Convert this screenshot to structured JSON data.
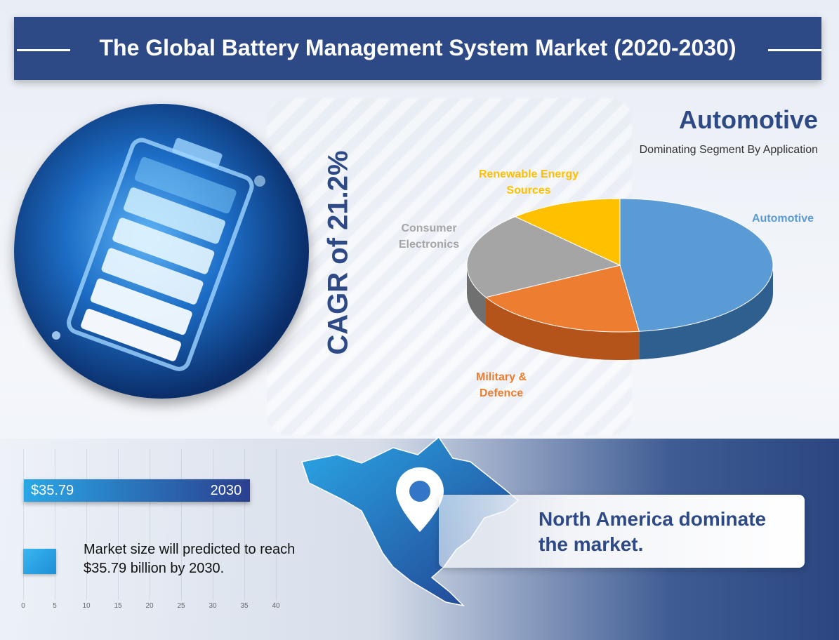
{
  "header": {
    "title": "The Global Battery Management System Market (2020-2030)"
  },
  "cagr": {
    "text": "CAGR of 21.2%"
  },
  "segment": {
    "title": "Automotive",
    "subtitle": "Dominating Segment By Application"
  },
  "region": {
    "text": "North America dominate the market."
  },
  "market_bar": {
    "value_label": "$35.79",
    "year_label": "2030"
  },
  "legend": {
    "text": "Market size will predicted to reach $35.79 billion by 2030."
  },
  "colors": {
    "header": "#2e4a86",
    "automotive": "#5b9bd5",
    "military": "#ed7d31",
    "consumer": "#a5a5a5",
    "renewable": "#ffc000"
  },
  "chart_data": [
    {
      "type": "pie",
      "title": "",
      "categories": [
        "Automotive",
        "Military & Defence",
        "Consumer Electronics",
        "Renewable Energy Sources"
      ],
      "values": [
        48,
        19,
        21,
        12
      ],
      "label_colors": [
        "#5b9bd5",
        "#ed7d31",
        "#a5a5a5",
        "#ffc000"
      ]
    },
    {
      "type": "bar",
      "categories": [
        "2030"
      ],
      "values": [
        35.79
      ],
      "value_label": "$35.79",
      "xlim": [
        0,
        40
      ],
      "x_ticks": [
        "0",
        "5",
        "10",
        "15",
        "20",
        "25",
        "30",
        "35",
        "40"
      ],
      "legend": [
        "Market size will predicted to reach $35.79 billion by 2030."
      ]
    }
  ]
}
